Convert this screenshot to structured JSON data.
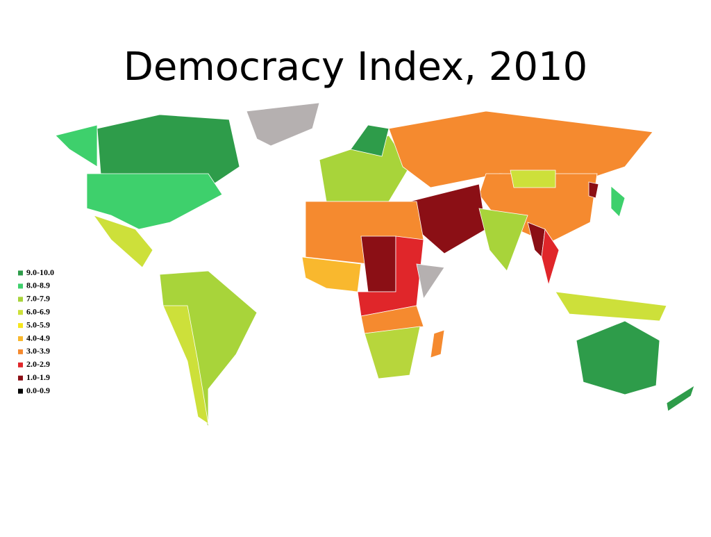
{
  "title": "Democracy Index, 2010",
  "legend": [
    {
      "label": "9.0-10.0",
      "color": "#2e9c4a"
    },
    {
      "label": "8.0-8.9",
      "color": "#3ed06c"
    },
    {
      "label": "7.0-7.9",
      "color": "#a8d43a"
    },
    {
      "label": "6.0-6.9",
      "color": "#cde03a"
    },
    {
      "label": "5.0-5.9",
      "color": "#f6e61c"
    },
    {
      "label": "4.0-4.9",
      "color": "#f9b82e"
    },
    {
      "label": "3.0-3.9",
      "color": "#f58a2f"
    },
    {
      "label": "2.0-2.9",
      "color": "#e0262a"
    },
    {
      "label": "1.0-1.9",
      "color": "#8b0f15"
    },
    {
      "label": "0.0-0.9",
      "color": "#000000"
    }
  ]
}
